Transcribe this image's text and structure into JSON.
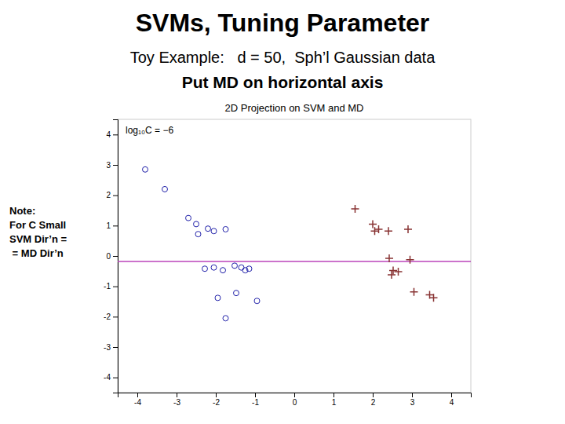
{
  "chart_data": {
    "type": "scatter",
    "title": "SVMs, Tuning Parameter",
    "subtitle": [
      "Toy Example:   d = 50,  Sph’l Gaussian data",
      "Put MD on horizontal axis"
    ],
    "plot_title": "2D Projection on SVM and MD",
    "note": [
      "Note:",
      "For C Small",
      "SVM Dir’n =",
      " = MD Dir’n"
    ],
    "annotations": [
      {
        "text": "log₁₀C = −6"
      }
    ],
    "series": [
      {
        "marker": "circle-open",
        "color": "#2222aa",
        "x": [
          -3.8,
          -3.3,
          -2.7,
          -2.5,
          -2.2,
          -2.05,
          -2.45,
          -1.75,
          -2.05,
          -2.28,
          -1.82,
          -1.52,
          -1.35,
          -1.15,
          -1.25,
          -1.95,
          -1.48,
          -0.95,
          -1.75
        ],
        "values": [
          2.85,
          2.2,
          1.25,
          1.05,
          0.9,
          0.82,
          0.72,
          0.88,
          -0.38,
          -0.42,
          -0.47,
          -0.32,
          -0.38,
          -0.42,
          -0.47,
          -1.38,
          -1.22,
          -1.48,
          -2.05
        ]
      },
      {
        "marker": "plus",
        "color": "#883333",
        "x": [
          1.55,
          2.0,
          2.15,
          2.05,
          2.4,
          2.9,
          2.42,
          2.95,
          2.52,
          2.65,
          2.48,
          3.05,
          3.45,
          3.55
        ],
        "values": [
          1.55,
          1.05,
          0.88,
          0.82,
          0.82,
          0.88,
          -0.08,
          -0.12,
          -0.48,
          -0.52,
          -0.62,
          -1.18,
          -1.28,
          -1.38
        ]
      }
    ],
    "hlines": [
      {
        "value": -0.18,
        "color": "#bb44bb"
      }
    ],
    "xlim": [
      -4.5,
      4.5
    ],
    "ylim": [
      -4.5,
      4.5
    ],
    "xticks": [
      -4,
      -3,
      -2,
      -1,
      0,
      1,
      2,
      3,
      4
    ],
    "yticks": [
      -4,
      -3,
      -2,
      -1,
      0,
      1,
      2,
      3,
      4
    ],
    "grid": false
  }
}
